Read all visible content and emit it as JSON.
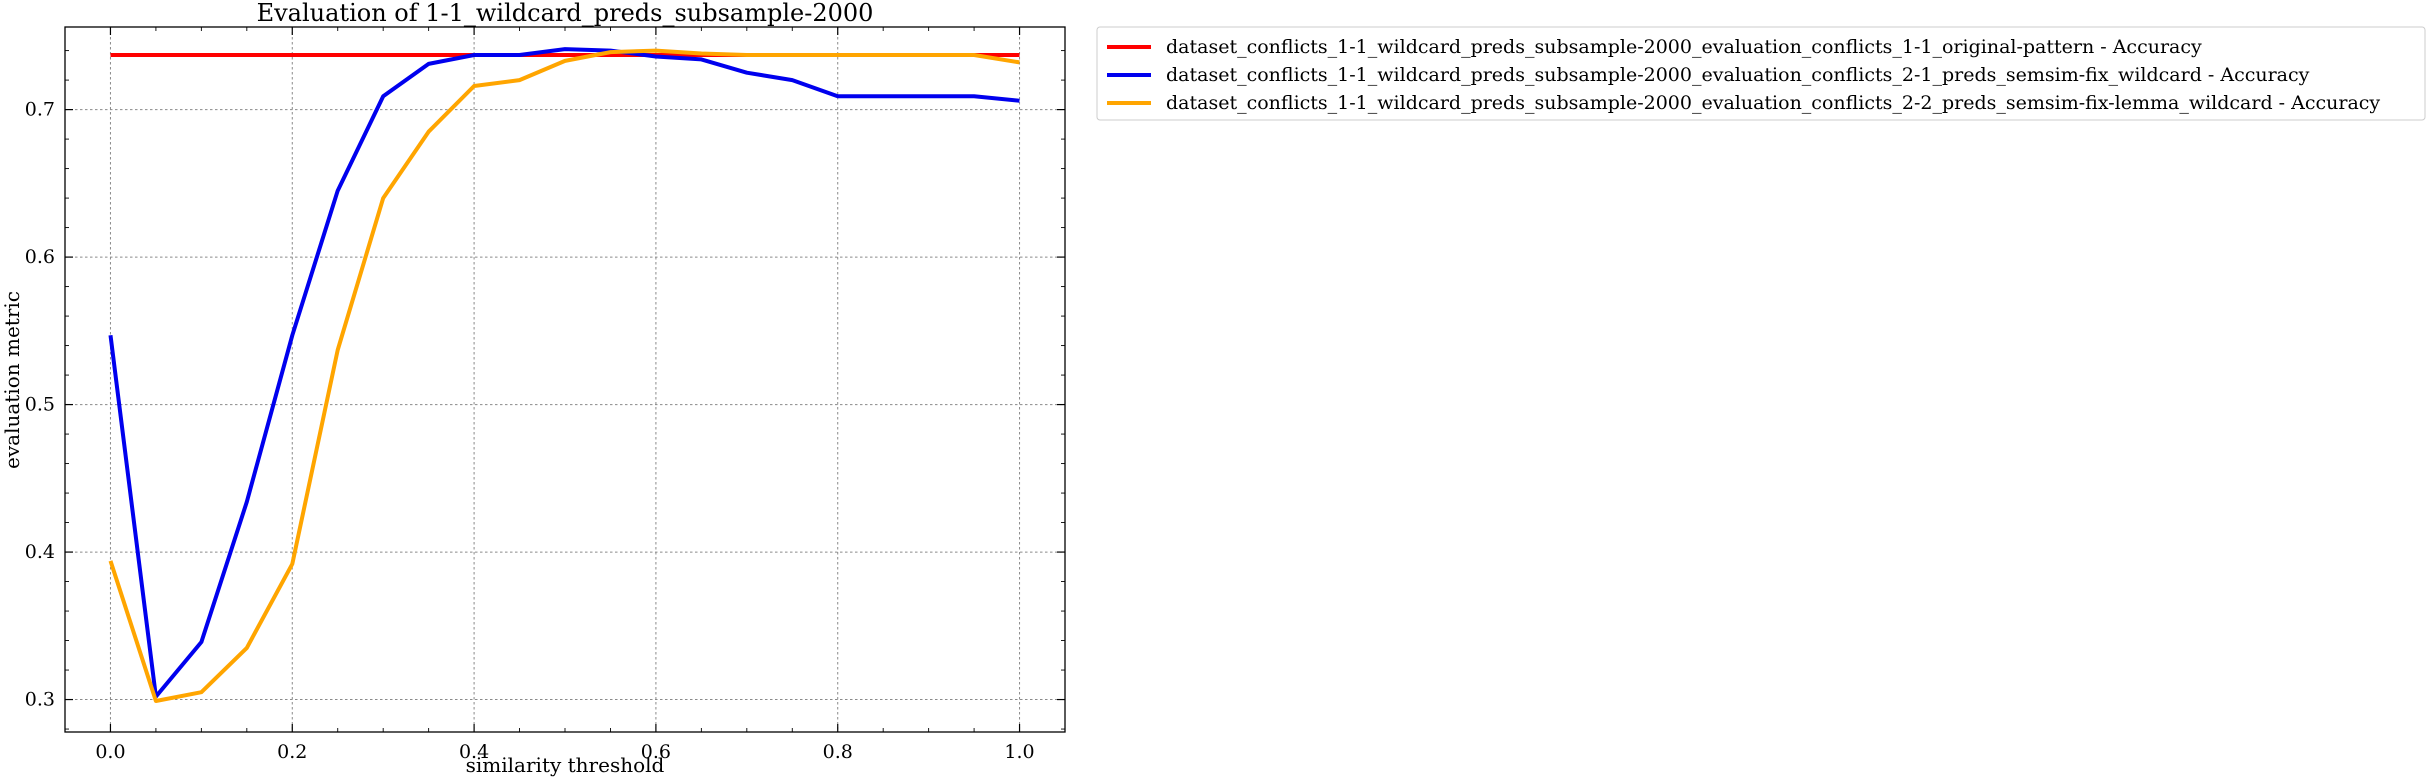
{
  "chart_data": {
    "type": "line",
    "title": "Evaluation of 1-1_wildcard_preds_subsample-2000",
    "xlabel": "similarity threshold",
    "ylabel": "evaluation metric",
    "xlim": [
      -0.05,
      1.05
    ],
    "ylim": [
      0.278,
      0.756
    ],
    "xticks": [
      0.0,
      0.2,
      0.4,
      0.6,
      0.8,
      1.0
    ],
    "xtick_labels": [
      "0.0",
      "0.2",
      "0.4",
      "0.6",
      "0.8",
      "1.0"
    ],
    "yticks": [
      0.3,
      0.4,
      0.5,
      0.6,
      0.7
    ],
    "ytick_labels": [
      "0.3",
      "0.4",
      "0.5",
      "0.6",
      "0.7"
    ],
    "grid": true,
    "legend_position": "outside-upper-right",
    "x": [
      0.0,
      0.05,
      0.1,
      0.15,
      0.2,
      0.25,
      0.3,
      0.35,
      0.4,
      0.45,
      0.5,
      0.55,
      0.6,
      0.65,
      0.7,
      0.75,
      0.8,
      0.85,
      0.9,
      0.95,
      1.0
    ],
    "series": [
      {
        "name": "dataset_conflicts_1-1_wildcard_preds_subsample-2000_evaluation_conflicts_1-1_original-pattern - Accuracy",
        "color": "#ff0000",
        "values": [
          0.737,
          0.737,
          0.737,
          0.737,
          0.737,
          0.737,
          0.737,
          0.737,
          0.737,
          0.737,
          0.737,
          0.737,
          0.737,
          0.737,
          0.737,
          0.737,
          0.737,
          0.737,
          0.737,
          0.737,
          0.737
        ]
      },
      {
        "name": "dataset_conflicts_1-1_wildcard_preds_subsample-2000_evaluation_conflicts_2-1_preds_semsim-fix_wildcard - Accuracy",
        "color": "#0000ee",
        "values": [
          0.547,
          0.302,
          0.339,
          0.434,
          0.547,
          0.645,
          0.709,
          0.731,
          0.737,
          0.737,
          0.741,
          0.74,
          0.736,
          0.734,
          0.725,
          0.72,
          0.709,
          0.709,
          0.709,
          0.709,
          0.706
        ]
      },
      {
        "name": "dataset_conflicts_1-1_wildcard_preds_subsample-2000_evaluation_conflicts_2-2_preds_semsim-fix-lemma_wildcard - Accuracy",
        "color": "#ffa500",
        "values": [
          0.394,
          0.299,
          0.305,
          0.335,
          0.392,
          0.537,
          0.64,
          0.685,
          0.716,
          0.72,
          0.733,
          0.739,
          0.74,
          0.738,
          0.737,
          0.737,
          0.737,
          0.737,
          0.737,
          0.737,
          0.732
        ]
      }
    ]
  }
}
